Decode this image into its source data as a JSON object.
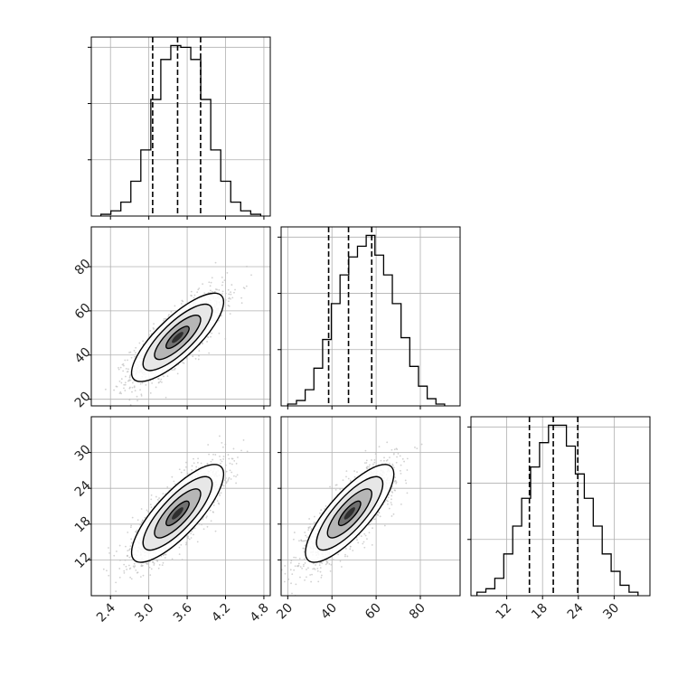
{
  "figure": {
    "type": "corner-plot"
  },
  "chart_data": {
    "type": "corner",
    "colors": {
      "frame": "#000000",
      "grid": "#b0b0b0",
      "line": "#000000",
      "points": "#bdbdbd"
    },
    "params": [
      {
        "range": [
          2.1,
          4.9
        ],
        "ticks": [
          2.4,
          3.0,
          3.6,
          4.2,
          4.8
        ],
        "tick_labels": [
          "2.4",
          "3.0",
          "3.6",
          "4.2",
          "4.8"
        ],
        "quantiles": [
          3.06,
          3.45,
          3.81
        ],
        "hist_range": [
          2.25,
          4.75
        ],
        "hist": [
          1,
          3,
          8,
          20,
          38,
          67,
          90,
          98,
          97,
          90,
          67,
          38,
          20,
          8,
          3,
          1
        ]
      },
      {
        "range": [
          17,
          98
        ],
        "ticks": [
          20,
          40,
          60,
          80
        ],
        "tick_labels": [
          "20",
          "40",
          "60",
          "80"
        ],
        "quantiles": [
          38.5,
          47.5,
          58
        ],
        "hist_range": [
          20,
          91
        ],
        "hist": [
          1,
          3,
          9,
          21,
          37,
          57,
          73,
          83,
          89,
          95,
          84,
          73,
          57,
          38,
          22,
          11,
          4,
          1
        ]
      },
      {
        "range": [
          6,
          36
        ],
        "ticks": [
          12,
          18,
          24,
          30
        ],
        "tick_labels": [
          "12",
          "18",
          "24",
          "30"
        ],
        "quantiles": [
          15.8,
          19.8,
          23.9
        ],
        "hist_range": [
          7,
          34
        ],
        "hist": [
          1,
          2,
          5,
          12,
          20,
          28,
          37,
          44,
          49,
          49,
          43,
          35,
          28,
          20,
          12,
          7,
          3,
          1
        ]
      }
    ],
    "pairs": [
      {
        "row": 1,
        "col": 0,
        "center": [
          3.45,
          48
        ],
        "sd": [
          0.36,
          10
        ],
        "rho": 0.8
      },
      {
        "row": 2,
        "col": 0,
        "center": [
          3.45,
          19.8
        ],
        "sd": [
          0.36,
          4.1
        ],
        "rho": 0.8
      },
      {
        "row": 2,
        "col": 1,
        "center": [
          48,
          19.8
        ],
        "sd": [
          10,
          4.1
        ],
        "rho": 0.8
      }
    ],
    "contour_levels_sigma": [
      0.5,
      1.0,
      1.5,
      2.0
    ],
    "grid": true,
    "xlabel": "",
    "ylabel": ""
  }
}
